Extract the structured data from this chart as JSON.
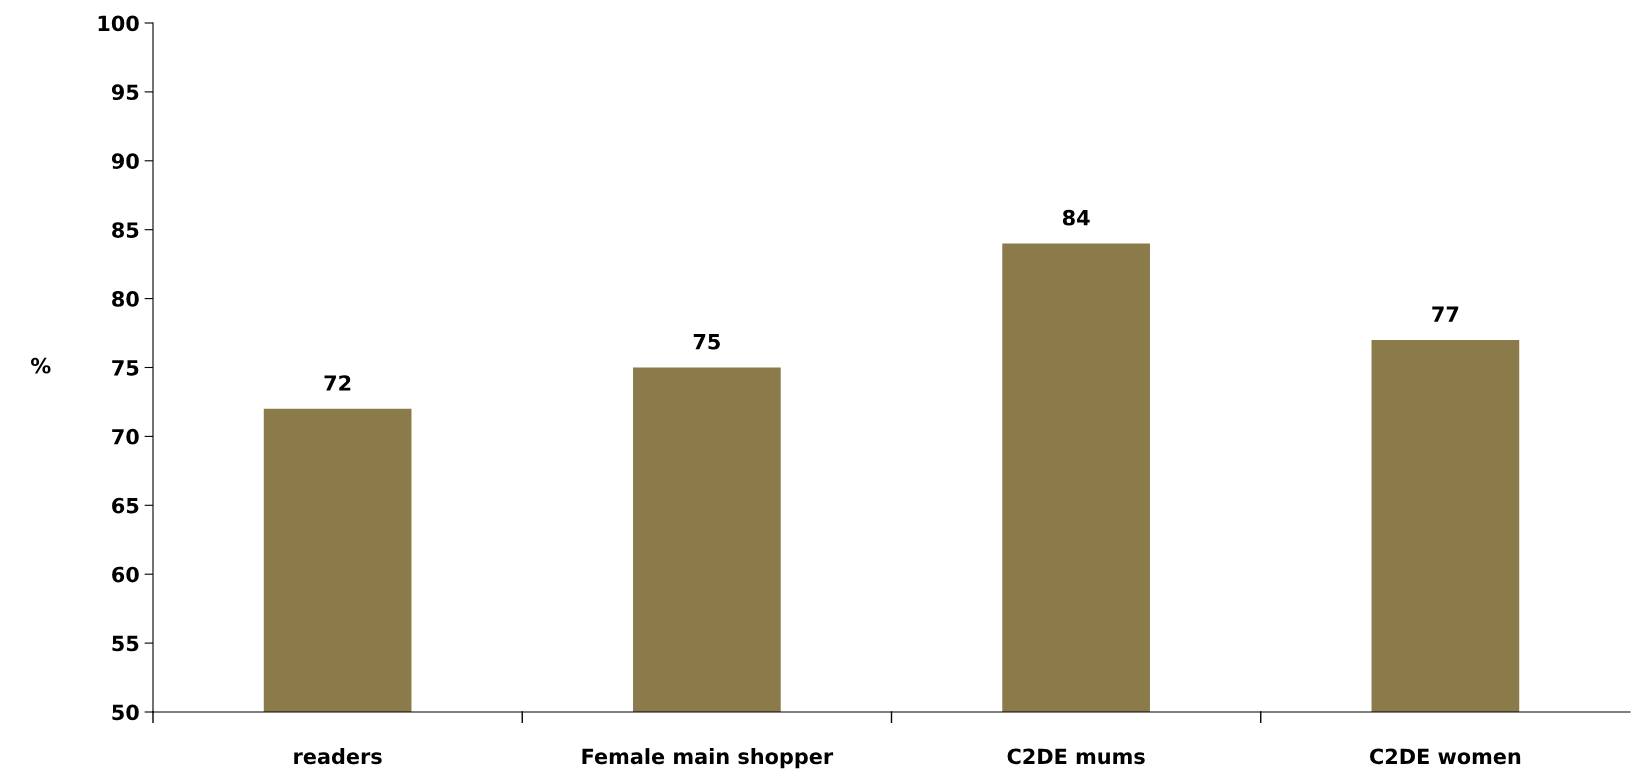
{
  "chart_data": {
    "type": "bar",
    "ylabel": "%",
    "categories": [
      "readers",
      "Female main shopper",
      "C2DE mums",
      "C2DE women"
    ],
    "values": [
      72,
      75,
      84,
      77
    ],
    "color": "#8b7a4a",
    "ylim": [
      50,
      100
    ],
    "yticks": [
      50,
      55,
      60,
      65,
      70,
      75,
      80,
      85,
      90,
      95,
      100
    ],
    "data_labels": true,
    "grid": false,
    "legend": false
  }
}
